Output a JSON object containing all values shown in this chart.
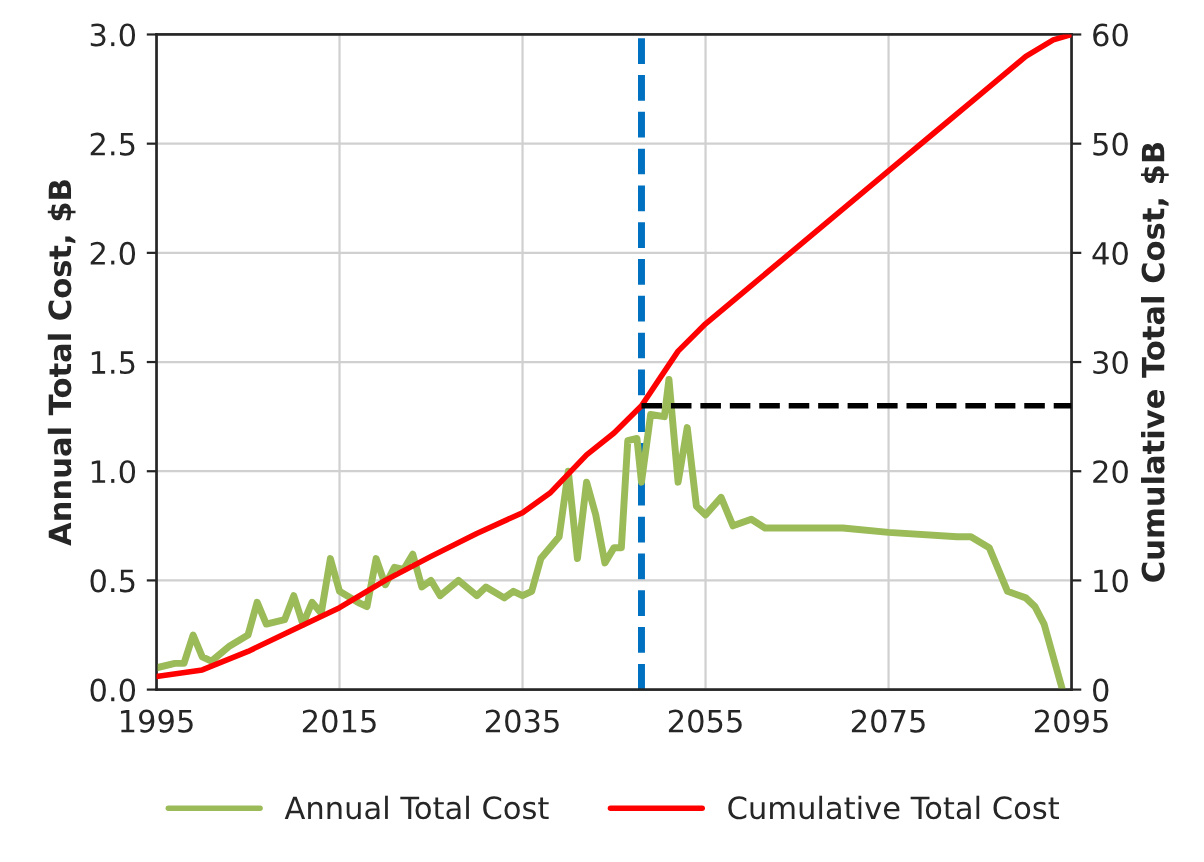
{
  "chart_data": {
    "type": "line",
    "xlim": [
      1995,
      2095
    ],
    "xticks": [
      1995,
      2015,
      2035,
      2055,
      2075,
      2095
    ],
    "ylim": [
      0,
      3.0
    ],
    "yticks": [
      {
        "value": 0,
        "label": "0.0"
      },
      {
        "value": 0.5,
        "label": "0.5"
      },
      {
        "value": 1.0,
        "label": "1.0"
      },
      {
        "value": 1.5,
        "label": "1.5"
      },
      {
        "value": 2.0,
        "label": "2.0"
      },
      {
        "value": 2.5,
        "label": "2.5"
      },
      {
        "value": 3.0,
        "label": "3.0"
      }
    ],
    "y2lim": [
      0,
      60
    ],
    "y2ticks": [
      0,
      10,
      20,
      30,
      40,
      50,
      60
    ],
    "ylabel": "Annual Total Cost, $B",
    "y2label": "Cumulative Total Cost, $B",
    "grid": true,
    "legend": "bottom",
    "series": [
      {
        "name": "Annual Total Cost",
        "color": "#9bbb59",
        "x": [
          1995,
          1997,
          1998,
          1999,
          2000,
          2001,
          2003,
          2005,
          2006,
          2007,
          2009,
          2010,
          2011,
          2012,
          2013,
          2014,
          2015,
          2017,
          2018,
          2019,
          2020,
          2021,
          2022,
          2023,
          2024,
          2025,
          2026,
          2028,
          2030,
          2031,
          2033,
          2034,
          2035,
          2036,
          2037,
          2039,
          2040,
          2041,
          2042,
          2043,
          2044,
          2045,
          2045.8,
          2046.5,
          2047.5,
          2048,
          2049,
          2050.5,
          2051,
          2052,
          2053,
          2054,
          2055,
          2056.7,
          2058,
          2060,
          2061.5,
          2065,
          2070,
          2075,
          2082.5,
          2084,
          2086,
          2088,
          2090,
          2091,
          2092,
          2094
        ],
        "values": [
          0.1,
          0.12,
          0.12,
          0.25,
          0.15,
          0.13,
          0.2,
          0.25,
          0.4,
          0.3,
          0.32,
          0.43,
          0.3,
          0.4,
          0.35,
          0.6,
          0.45,
          0.4,
          0.38,
          0.6,
          0.48,
          0.56,
          0.55,
          0.62,
          0.47,
          0.5,
          0.43,
          0.5,
          0.43,
          0.47,
          0.42,
          0.45,
          0.43,
          0.45,
          0.6,
          0.7,
          1.0,
          0.6,
          0.95,
          0.8,
          0.58,
          0.65,
          0.65,
          1.14,
          1.15,
          0.95,
          1.26,
          1.25,
          1.42,
          0.95,
          1.2,
          0.84,
          0.8,
          0.88,
          0.75,
          0.78,
          0.74,
          0.74,
          0.74,
          0.72,
          0.7,
          0.7,
          0.65,
          0.45,
          0.42,
          0.38,
          0.3,
          0.0
        ]
      },
      {
        "name": "Cumulative Total Cost",
        "color": "#ff0000",
        "axis": "y2",
        "x": [
          1995,
          2000,
          2005,
          2010,
          2015,
          2020,
          2025,
          2030,
          2035,
          2038,
          2042,
          2045,
          2048,
          2050,
          2052,
          2055,
          2060,
          2065,
          2070,
          2075,
          2080,
          2085,
          2090,
          2093,
          2095
        ],
        "values": [
          1.2,
          1.8,
          3.5,
          5.5,
          7.5,
          10,
          12.2,
          14.3,
          16.2,
          18,
          21.5,
          23.5,
          26,
          28.5,
          31,
          33.5,
          37,
          40.5,
          44,
          47.5,
          51,
          54.5,
          58,
          59.5,
          60
        ]
      },
      {
        "color": "#000000",
        "axis": "y2",
        "line_style": "dashed",
        "x": [
          2048,
          2095
        ],
        "values": [
          26,
          26
        ]
      }
    ],
    "ref_lines": [
      {
        "axis": "x",
        "value": 2048,
        "color": "#0070c0",
        "line_style": "dashed"
      }
    ]
  }
}
